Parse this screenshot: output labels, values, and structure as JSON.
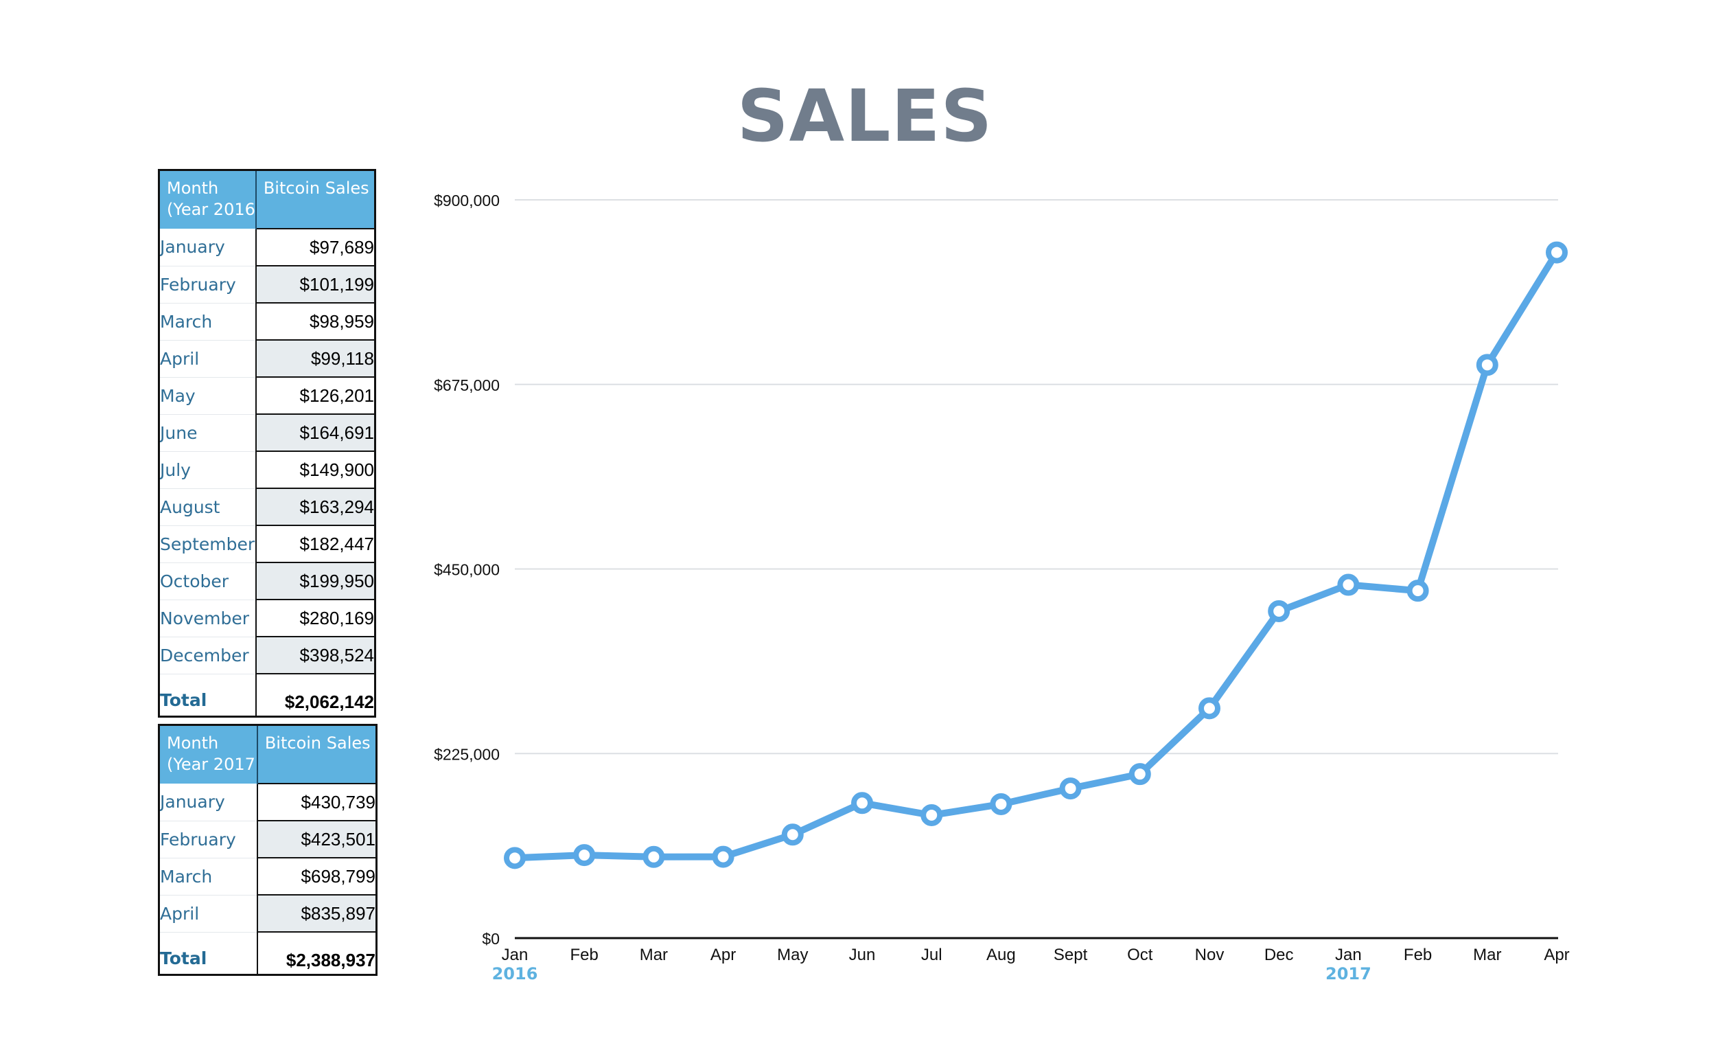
{
  "title": "SALES",
  "tables": [
    {
      "header_month": "Month\n(Year 2016)",
      "header_value": "Bitcoin Sales",
      "rows": [
        {
          "month": "January",
          "value": "$97,689"
        },
        {
          "month": "February",
          "value": "$101,199"
        },
        {
          "month": "March",
          "value": "$98,959"
        },
        {
          "month": "April",
          "value": "$99,118"
        },
        {
          "month": "May",
          "value": "$126,201"
        },
        {
          "month": "June",
          "value": "$164,691"
        },
        {
          "month": "July",
          "value": "$149,900"
        },
        {
          "month": "August",
          "value": "$163,294"
        },
        {
          "month": "September",
          "value": "$182,447"
        },
        {
          "month": "October",
          "value": "$199,950"
        },
        {
          "month": "November",
          "value": "$280,169"
        },
        {
          "month": "December",
          "value": "$398,524"
        }
      ],
      "total_label": "Total",
      "total_value": "$2,062,142"
    },
    {
      "header_month": "Month\n(Year 2017)",
      "header_value": "Bitcoin Sales",
      "rows": [
        {
          "month": "January",
          "value": "$430,739"
        },
        {
          "month": "February",
          "value": "$423,501"
        },
        {
          "month": "March",
          "value": "$698,799"
        },
        {
          "month": "April",
          "value": "$835,897"
        }
      ],
      "total_label": "Total",
      "total_value": "$2,388,937"
    }
  ],
  "chart_data": {
    "type": "line",
    "title": "SALES",
    "categories": [
      "Jan",
      "Feb",
      "Mar",
      "Apr",
      "May",
      "Jun",
      "Jul",
      "Aug",
      "Sept",
      "Oct",
      "Nov",
      "Dec",
      "Jan",
      "Feb",
      "Mar",
      "Apr"
    ],
    "year_labels": [
      {
        "index": 0,
        "label": "2016"
      },
      {
        "index": 12,
        "label": "2017"
      }
    ],
    "values": [
      97689,
      101199,
      98959,
      99118,
      126201,
      164691,
      149900,
      163294,
      182447,
      199950,
      280169,
      398524,
      430739,
      423501,
      698799,
      835897
    ],
    "ylim": [
      0,
      900000
    ],
    "yticks": [
      0,
      225000,
      450000,
      675000,
      900000
    ],
    "ytick_labels": [
      "$0",
      "$225,000",
      "$450,000",
      "$675,000",
      "$900,000"
    ],
    "grid": true,
    "legend": "none",
    "colors": {
      "line": "#5aa8e6",
      "grid": "#dcdfe3",
      "axis": "#111111",
      "year_label": "#5eb2e0"
    }
  }
}
